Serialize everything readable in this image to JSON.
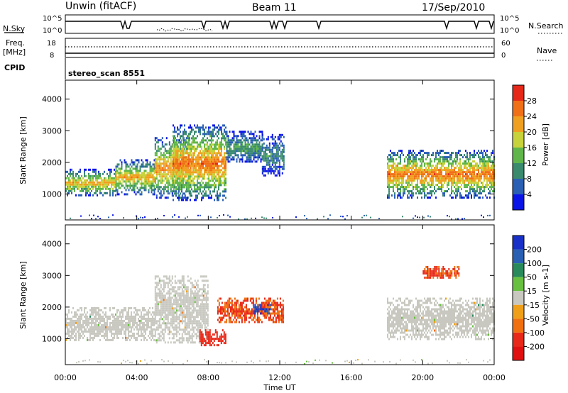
{
  "header": {
    "title": "Unwin (fitACF)",
    "beam": "Beam 11",
    "date": "17/Sep/2010"
  },
  "aux": {
    "nsky_label": "N.Sky",
    "nsky_ticks": [
      "10^5",
      "10^0"
    ],
    "nsearch_label": "N.Search",
    "freq_label_1": "Freq.",
    "freq_label_2": "[MHz]",
    "freq_ticks": [
      "18",
      "8"
    ],
    "nave_ticks": [
      "60",
      "0"
    ],
    "nave_label": "Nave",
    "cpid_label": "CPID",
    "cpid_value": "stereo_scan 8551"
  },
  "chart_data": [
    {
      "type": "heatmap",
      "panel": "power",
      "xlabel": "Time UT",
      "ylabel": "Slant Range [km]",
      "xlim": [
        0,
        24
      ],
      "ylim": [
        180,
        4600
      ],
      "x_ticks": [
        "00:00",
        "04:00",
        "08:00",
        "12:00",
        "16:00",
        "20:00",
        "00:00"
      ],
      "y_ticks": [
        1000,
        2000,
        3000,
        4000
      ],
      "colorbar": {
        "label": "Power [dB]",
        "levels": [
          4,
          8,
          12,
          16,
          20,
          24,
          28
        ],
        "colors": [
          "#0a14e6",
          "#2a5fb4",
          "#3a8a6e",
          "#60b64a",
          "#c8d23a",
          "#f0a020",
          "#f07018",
          "#e62818"
        ]
      },
      "regions": [
        {
          "t_start": 0.0,
          "t_end": 2.8,
          "range_low": 950,
          "range_high": 1800,
          "peak_power": 22
        },
        {
          "t_start": 2.8,
          "t_end": 5.0,
          "range_low": 1000,
          "range_high": 2100,
          "peak_power": 22
        },
        {
          "t_start": 5.0,
          "t_end": 7.0,
          "range_low": 900,
          "range_high": 2800,
          "peak_power": 24
        },
        {
          "t_start": 6.0,
          "t_end": 9.0,
          "range_low": 800,
          "range_high": 3200,
          "peak_power": 26
        },
        {
          "t_start": 9.0,
          "t_end": 11.0,
          "range_low": 2000,
          "range_high": 3000,
          "peak_power": 12
        },
        {
          "t_start": 11.0,
          "t_end": 12.2,
          "range_low": 1600,
          "range_high": 2900,
          "peak_power": 10
        },
        {
          "t_start": 18.0,
          "t_end": 24.0,
          "range_low": 900,
          "range_high": 2400,
          "peak_power": 26
        }
      ]
    },
    {
      "type": "heatmap",
      "panel": "velocity",
      "xlabel": "Time UT",
      "ylabel": "Slant Range [km]",
      "xlim": [
        0,
        24
      ],
      "ylim": [
        180,
        4600
      ],
      "x_ticks": [
        "00:00",
        "04:00",
        "08:00",
        "12:00",
        "16:00",
        "20:00",
        "00:00"
      ],
      "y_ticks": [
        1000,
        2000,
        3000,
        4000
      ],
      "colorbar": {
        "label": "Velocity [m s-1]",
        "levels": [
          200,
          100,
          50,
          15,
          -15,
          -50,
          -100,
          -200
        ],
        "colors": [
          "#1830c8",
          "#2a60b4",
          "#288a5a",
          "#68c040",
          "#c8c8c0",
          "#f0a018",
          "#f07010",
          "#e82818",
          "#e01010"
        ]
      },
      "regions": [
        {
          "t_start": 0.0,
          "t_end": 5.0,
          "range_low": 950,
          "range_high": 2000,
          "velocity": "ground scatter"
        },
        {
          "t_start": 5.0,
          "t_end": 8.0,
          "range_low": 900,
          "range_high": 3000,
          "velocity": "ground scatter"
        },
        {
          "t_start": 7.5,
          "t_end": 9.0,
          "range_low": 800,
          "range_high": 1300,
          "velocity": -150
        },
        {
          "t_start": 8.5,
          "t_end": 12.2,
          "range_low": 1500,
          "range_high": 2300,
          "velocity": -100
        },
        {
          "t_start": 10.5,
          "t_end": 11.5,
          "range_low": 1800,
          "range_high": 2100,
          "velocity": 200
        },
        {
          "t_start": 18.0,
          "t_end": 24.0,
          "range_low": 1000,
          "range_high": 2300,
          "velocity": "ground scatter"
        },
        {
          "t_start": 20.0,
          "t_end": 22.0,
          "range_low": 2900,
          "range_high": 3300,
          "velocity": -100
        }
      ]
    }
  ]
}
